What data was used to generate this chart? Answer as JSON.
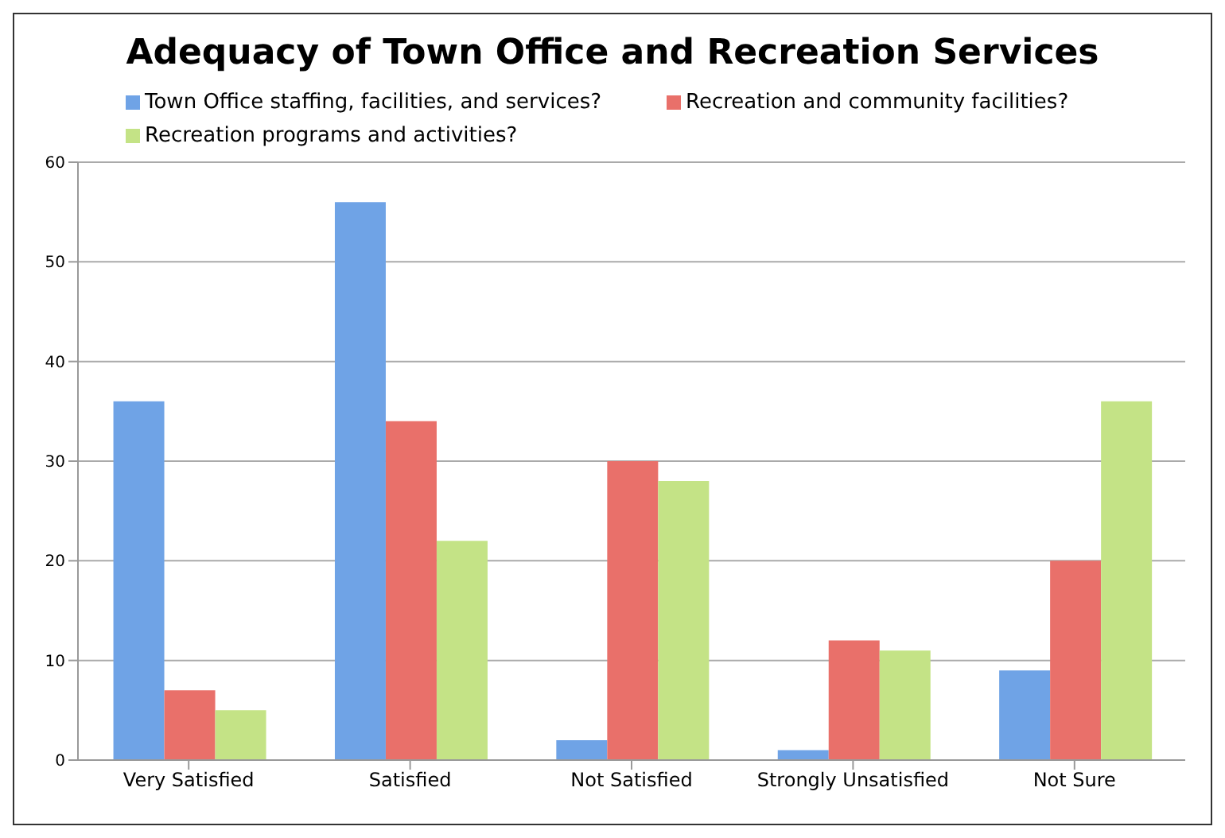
{
  "chart_data": {
    "type": "bar",
    "title": "Adequacy of Town Office and Recreation Services",
    "categories": [
      "Very Satisfied",
      "Satisfied",
      "Not Satisfied",
      "Strongly Unsatisfied",
      "Not Sure"
    ],
    "series": [
      {
        "name": "Town Office staffing, facilities, and services?",
        "color": "#6fa3e6",
        "values": [
          36,
          56,
          2,
          1,
          9
        ]
      },
      {
        "name": "Recreation and community facilities?",
        "color": "#e9706a",
        "values": [
          7,
          34,
          30,
          12,
          20
        ]
      },
      {
        "name": "Recreation programs and activities?",
        "color": "#c4e386",
        "values": [
          5,
          22,
          28,
          11,
          36
        ]
      }
    ],
    "ylim": [
      0,
      60
    ],
    "yticks": [
      0,
      10,
      20,
      30,
      40,
      50,
      60
    ],
    "grid": "y",
    "legend": "top left"
  }
}
